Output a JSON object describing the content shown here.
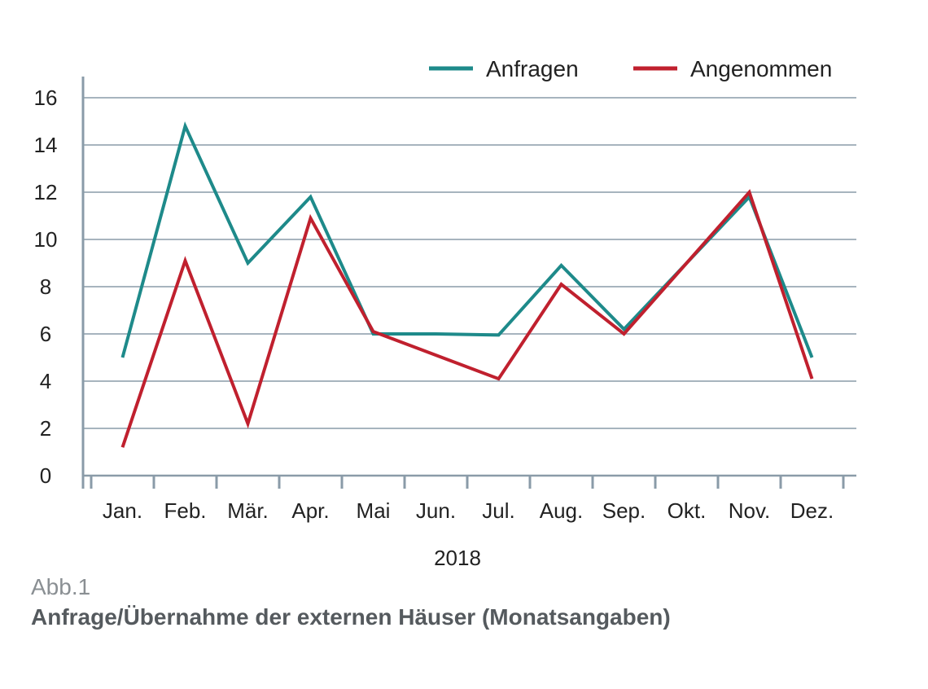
{
  "chart_data": {
    "type": "line",
    "categories": [
      "Jan.",
      "Feb.",
      "Mär.",
      "Apr.",
      "Mai",
      "Jun.",
      "Jul.",
      "Aug.",
      "Sep.",
      "Okt.",
      "Nov.",
      "Dez."
    ],
    "series": [
      {
        "name": "Anfragen",
        "color": "#1e8a8a",
        "values": [
          5,
          14.8,
          9,
          11.8,
          6,
          6,
          5.95,
          8.9,
          6.2,
          9,
          11.8,
          5
        ]
      },
      {
        "name": "Angenommen",
        "color": "#c0202e",
        "values": [
          1.2,
          9.1,
          2.2,
          10.9,
          6.1,
          5.1,
          4.1,
          8.1,
          6.0,
          9,
          12,
          4.1
        ]
      }
    ],
    "yticks": [
      0,
      2,
      4,
      6,
      8,
      10,
      12,
      14,
      16
    ],
    "ylim": [
      0,
      16
    ],
    "xlabel": "2018",
    "ylabel": "",
    "grid": true,
    "legend": "top-right"
  },
  "caption": {
    "number": "Abb.1",
    "title": "Anfrage/Übernahme der externen Häuser (Monatsangaben)"
  }
}
